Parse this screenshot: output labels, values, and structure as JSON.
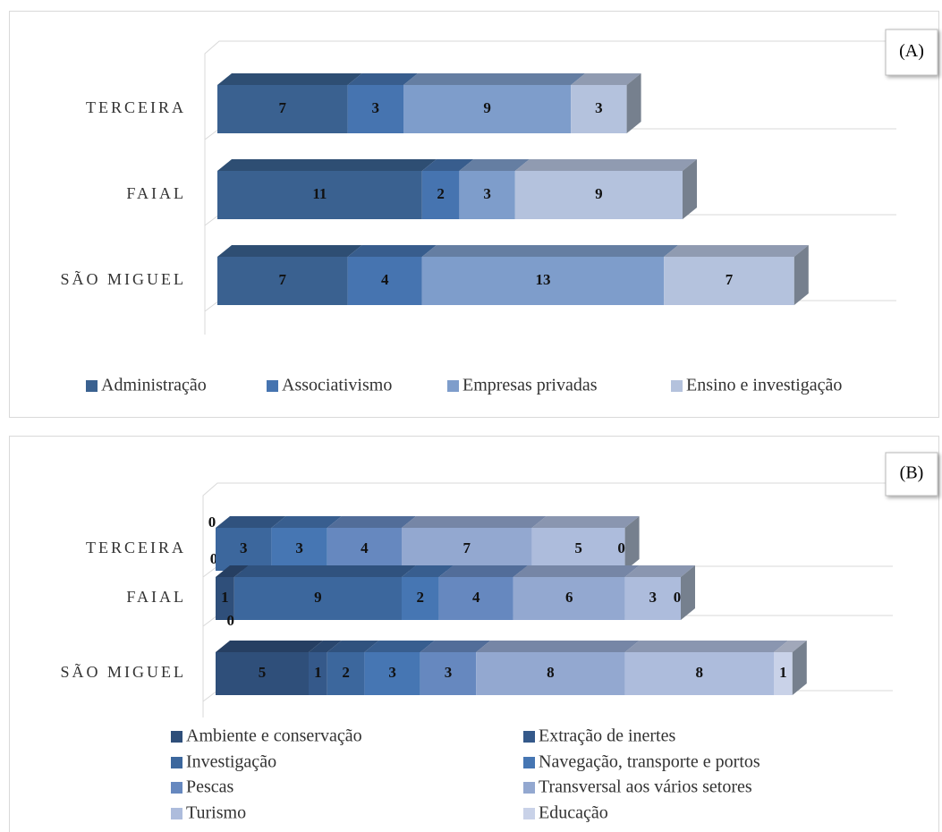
{
  "chart_data": [
    {
      "type": "bar3d_stacked_horizontal",
      "label": "(A)",
      "categories": [
        "TERCEIRA",
        "FAIAL",
        "SÃO MIGUEL"
      ],
      "series": [
        {
          "name": "Administração",
          "color": "#3a6190",
          "values": [
            7,
            11,
            7
          ]
        },
        {
          "name": "Associativismo",
          "color": "#4674b0",
          "values": [
            3,
            2,
            4
          ]
        },
        {
          "name": "Empresas privadas",
          "color": "#7e9dcb",
          "values": [
            9,
            3,
            13
          ]
        },
        {
          "name": "Ensino e investigação",
          "color": "#b4c2dd",
          "values": [
            3,
            9,
            7
          ]
        }
      ]
    },
    {
      "type": "bar3d_stacked_horizontal",
      "label": "(B)",
      "categories": [
        "TERCEIRA",
        "FAIAL",
        "SÃO MIGUEL"
      ],
      "series": [
        {
          "name": "Ambiente e conservação",
          "color": "#2f4f7a",
          "values": [
            0,
            1,
            5
          ]
        },
        {
          "name": "Extração de inertes",
          "color": "#35598a",
          "values": [
            0,
            0,
            1
          ]
        },
        {
          "name": "Investigação",
          "color": "#3c679d",
          "values": [
            3,
            9,
            2
          ]
        },
        {
          "name": "Navegação, transporte e portos",
          "color": "#4676b3",
          "values": [
            3,
            2,
            3
          ]
        },
        {
          "name": "Pescas",
          "color": "#6688bf",
          "values": [
            4,
            4,
            3
          ]
        },
        {
          "name": "Transversal aos vários setores",
          "color": "#93a8d0",
          "values": [
            7,
            6,
            8
          ]
        },
        {
          "name": "Turismo",
          "color": "#adbcdc",
          "values": [
            5,
            3,
            8
          ]
        },
        {
          "name": "Educação",
          "color": "#c9d2e8",
          "values": [
            0,
            0,
            1
          ]
        }
      ]
    }
  ]
}
